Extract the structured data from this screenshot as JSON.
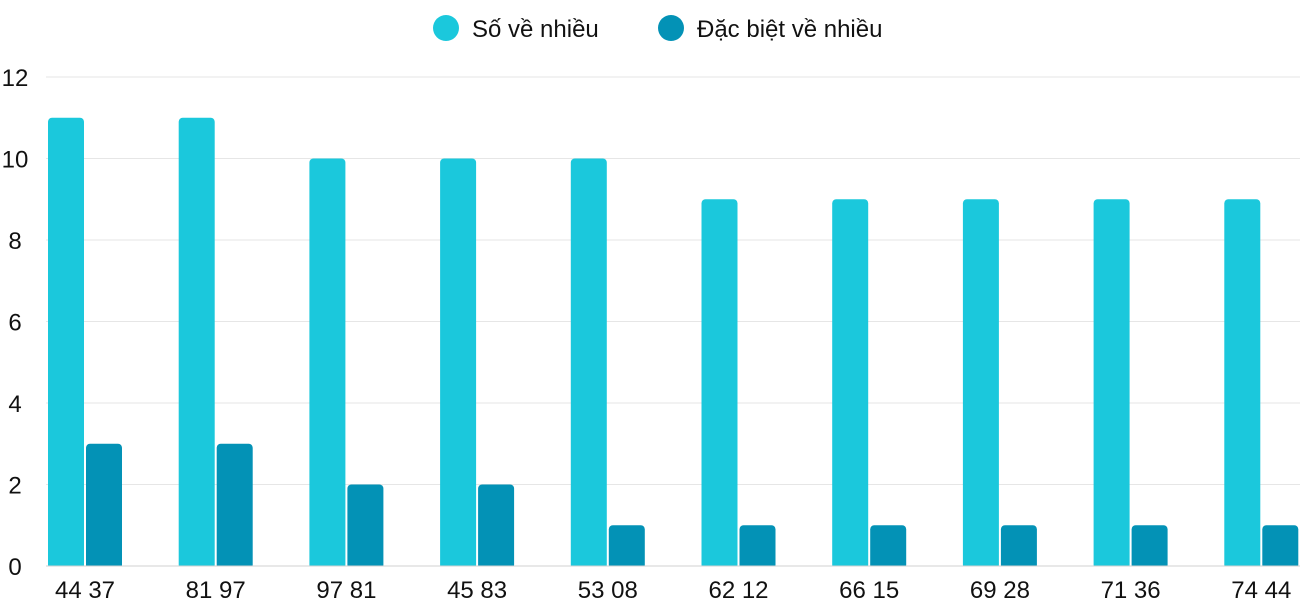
{
  "chart_data": {
    "type": "bar",
    "title": "",
    "xlabel": "",
    "ylabel": "",
    "categories": [
      "44 37",
      "81 97",
      "97 81",
      "45 83",
      "53 08",
      "62 12",
      "66 15",
      "69 28",
      "71 36",
      "74 44"
    ],
    "series": [
      {
        "name": "Số về nhiều",
        "color": "#1bc8dc",
        "values": [
          11,
          11,
          10,
          10,
          10,
          9,
          9,
          9,
          9,
          9
        ]
      },
      {
        "name": "Đặc biệt về nhiều",
        "color": "#0392b6",
        "values": [
          3,
          3,
          2,
          2,
          1,
          1,
          1,
          1,
          1,
          1
        ]
      }
    ],
    "ylim": [
      0,
      12
    ],
    "yticks": [
      0,
      2,
      4,
      6,
      8,
      10,
      12
    ],
    "grid": true,
    "legend": "top-center"
  }
}
